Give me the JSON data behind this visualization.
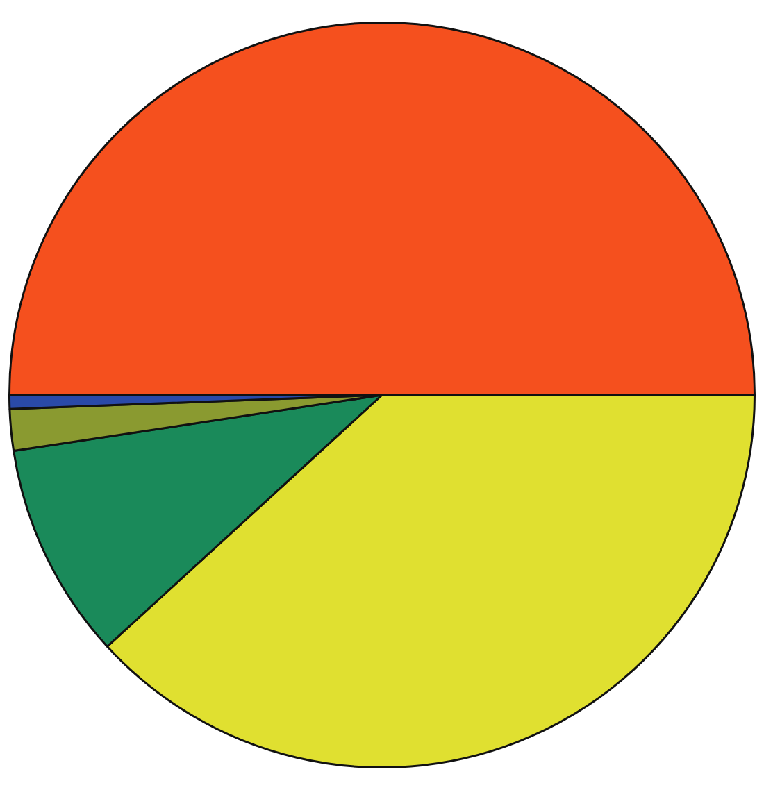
{
  "chart_data": {
    "type": "pie",
    "categories": [
      null,
      null,
      null,
      null,
      null
    ],
    "values": [
      38.2,
      9.4,
      1.8,
      0.6,
      50
    ],
    "colors": [
      "#e0e030",
      "#1a8a5a",
      "#8a9a30",
      "#2a4aa8",
      "#f5501e"
    ],
    "legend": false
  }
}
